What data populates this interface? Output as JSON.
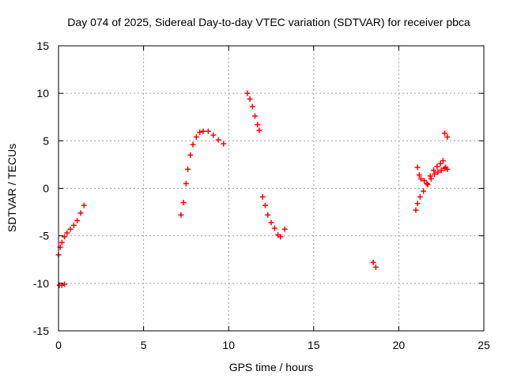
{
  "chart_data": {
    "type": "scatter",
    "title": "Day 074 of 2025, Sidereal Day-to-day VTEC variation (SDTVAR) for receiver pbca",
    "xlabel": "GPS time / hours",
    "ylabel": "SDTVAR / TECUs",
    "xlim": [
      0,
      25
    ],
    "ylim": [
      -15,
      15
    ],
    "x_ticks": [
      "0",
      "5",
      "10",
      "15",
      "20",
      "25"
    ],
    "y_ticks": [
      "-15",
      "-10",
      "-5",
      "0",
      "5",
      "10",
      "15"
    ],
    "grid": true,
    "legend": "none",
    "marker": "plus",
    "color": "#ff0000",
    "series": [
      {
        "points": [
          [
            0.0,
            -7.0
          ],
          [
            0.1,
            -6.2
          ],
          [
            0.2,
            -5.7
          ],
          [
            0.35,
            -5.1
          ],
          [
            0.5,
            -4.7
          ],
          [
            0.7,
            -4.3
          ],
          [
            0.9,
            -3.9
          ],
          [
            1.1,
            -3.4
          ],
          [
            1.3,
            -2.6
          ],
          [
            1.5,
            -1.8
          ],
          [
            0.05,
            -10.2
          ],
          [
            0.2,
            -10.2
          ],
          [
            0.35,
            -10.1
          ],
          [
            7.2,
            -2.8
          ],
          [
            7.35,
            -1.5
          ],
          [
            7.5,
            0.5
          ],
          [
            7.6,
            2.0
          ],
          [
            7.75,
            3.5
          ],
          [
            7.9,
            4.6
          ],
          [
            8.1,
            5.4
          ],
          [
            8.3,
            5.9
          ],
          [
            8.5,
            6.0
          ],
          [
            8.8,
            6.0
          ],
          [
            9.1,
            5.6
          ],
          [
            9.4,
            5.1
          ],
          [
            9.7,
            4.7
          ],
          [
            11.1,
            10.0
          ],
          [
            11.25,
            9.4
          ],
          [
            11.4,
            8.6
          ],
          [
            11.55,
            7.6
          ],
          [
            11.7,
            6.7
          ],
          [
            11.8,
            6.1
          ],
          [
            12.0,
            -0.9
          ],
          [
            12.15,
            -1.8
          ],
          [
            12.3,
            -2.8
          ],
          [
            12.5,
            -3.6
          ],
          [
            12.7,
            -4.2
          ],
          [
            12.9,
            -4.9
          ],
          [
            13.05,
            -5.1
          ],
          [
            13.3,
            -4.3
          ],
          [
            18.5,
            -7.8
          ],
          [
            18.65,
            -8.3
          ],
          [
            21.0,
            -2.3
          ],
          [
            21.1,
            -1.6
          ],
          [
            21.25,
            -0.9
          ],
          [
            21.45,
            -0.3
          ],
          [
            21.65,
            0.5
          ],
          [
            21.85,
            1.3
          ],
          [
            22.05,
            1.9
          ],
          [
            22.25,
            2.3
          ],
          [
            22.45,
            2.6
          ],
          [
            22.6,
            2.9
          ],
          [
            22.75,
            2.2
          ],
          [
            22.85,
            2.0
          ],
          [
            21.1,
            2.2
          ],
          [
            21.2,
            1.4
          ],
          [
            21.3,
            1.0
          ],
          [
            21.5,
            0.8
          ],
          [
            21.7,
            0.4
          ],
          [
            21.9,
            1.0
          ],
          [
            22.1,
            1.5
          ],
          [
            22.3,
            1.7
          ],
          [
            22.5,
            1.9
          ],
          [
            22.7,
            2.1
          ],
          [
            22.7,
            5.8
          ],
          [
            22.85,
            5.4
          ]
        ]
      }
    ]
  }
}
